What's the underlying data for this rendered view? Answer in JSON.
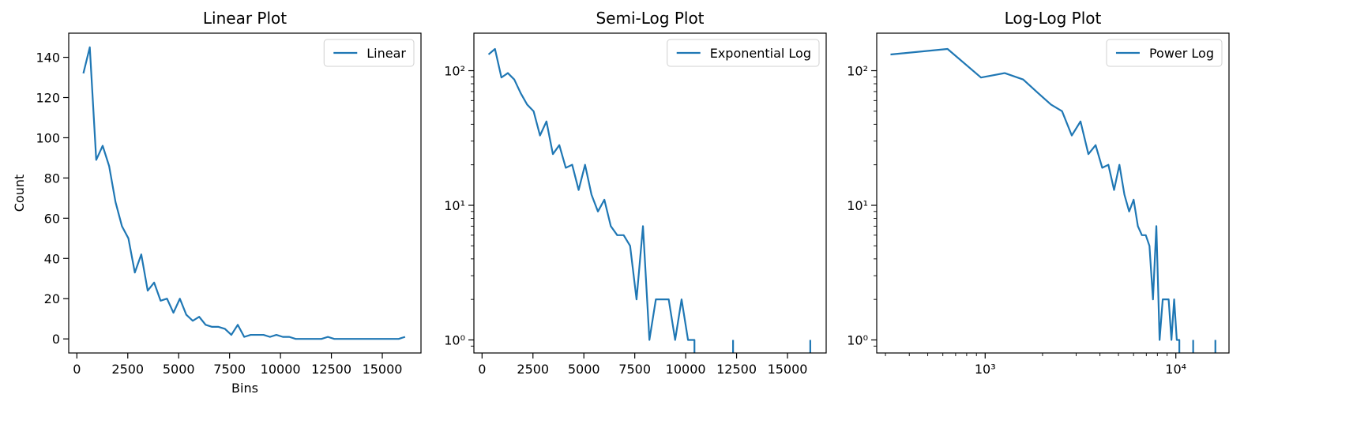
{
  "chart_data": [
    {
      "type": "line",
      "title": "Linear Plot",
      "xlabel": "Bins",
      "ylabel": "Count",
      "xscale": "linear",
      "yscale": "linear",
      "xlim": [
        -400,
        16900
      ],
      "ylim": [
        -7,
        152
      ],
      "xticks": [
        0,
        2500,
        5000,
        7500,
        10000,
        12500,
        15000
      ],
      "xtick_labels": [
        "0",
        "2500",
        "5000",
        "7500",
        "10000",
        "12500",
        "15000"
      ],
      "yticks": [
        0,
        20,
        40,
        60,
        80,
        100,
        120,
        140
      ],
      "ytick_labels": [
        "0",
        "20",
        "40",
        "60",
        "80",
        "100",
        "120",
        "140"
      ],
      "legend": {
        "position": "upper-right"
      },
      "series": [
        {
          "name": "Linear",
          "color": "#1f77b4",
          "x": [
            319,
            635,
            951,
            1267,
            1583,
            1899,
            2215,
            2531,
            2847,
            3163,
            3479,
            3795,
            4111,
            4427,
            4743,
            5059,
            5375,
            5691,
            6007,
            6323,
            6639,
            6955,
            7271,
            7587,
            7903,
            8219,
            8535,
            8851,
            9167,
            9483,
            9799,
            10115,
            10431,
            10747,
            11063,
            11379,
            11695,
            12011,
            12327,
            12643,
            12959,
            13275,
            13591,
            13907,
            14223,
            14539,
            14855,
            15171,
            15487,
            15803,
            16119
          ],
          "y": [
            132,
            145,
            89,
            96,
            86,
            68,
            56,
            50,
            33,
            42,
            24,
            28,
            19,
            20,
            13,
            20,
            12,
            9,
            11,
            7,
            6,
            6,
            5,
            2,
            7,
            1,
            2,
            2,
            2,
            1,
            2,
            1,
            1,
            0,
            0,
            0,
            0,
            0,
            1,
            0,
            0,
            0,
            0,
            0,
            0,
            0,
            0,
            0,
            0,
            0,
            1
          ]
        }
      ]
    },
    {
      "type": "line",
      "title": "Semi-Log Plot",
      "xlabel": "",
      "ylabel": "",
      "xscale": "linear",
      "yscale": "log",
      "xlim": [
        -400,
        16900
      ],
      "ylim": [
        0.8,
        190
      ],
      "xticks": [
        0,
        2500,
        5000,
        7500,
        10000,
        12500,
        15000
      ],
      "xtick_labels": [
        "0",
        "2500",
        "5000",
        "7500",
        "10000",
        "12500",
        "15000"
      ],
      "yticks": [
        1,
        10,
        100
      ],
      "ytick_labels": [
        "10⁰",
        "10¹",
        "10²"
      ],
      "legend": {
        "position": "upper-right"
      },
      "series": [
        {
          "name": "Exponential Log",
          "color": "#1f77b4",
          "x": [
            319,
            635,
            951,
            1267,
            1583,
            1899,
            2215,
            2531,
            2847,
            3163,
            3479,
            3795,
            4111,
            4427,
            4743,
            5059,
            5375,
            5691,
            6007,
            6323,
            6639,
            6955,
            7271,
            7587,
            7903,
            8219,
            8535,
            8851,
            9167,
            9483,
            9799,
            10115,
            10431,
            10747,
            11063,
            11379,
            11695,
            12011,
            12327,
            12643,
            12959,
            13275,
            13591,
            13907,
            14223,
            14539,
            14855,
            15171,
            15487,
            15803,
            16119
          ],
          "y": [
            132,
            145,
            89,
            96,
            86,
            68,
            56,
            50,
            33,
            42,
            24,
            28,
            19,
            20,
            13,
            20,
            12,
            9,
            11,
            7,
            6,
            6,
            5,
            2,
            7,
            1,
            2,
            2,
            2,
            1,
            2,
            1,
            1,
            0,
            0,
            0,
            0,
            0,
            1,
            0,
            0,
            0,
            0,
            0,
            0,
            0,
            0,
            0,
            0,
            0,
            1
          ]
        }
      ]
    },
    {
      "type": "line",
      "title": "Log-Log Plot",
      "xlabel": "",
      "ylabel": "",
      "xscale": "log",
      "yscale": "log",
      "xlim": [
        270,
        19000
      ],
      "ylim": [
        0.8,
        190
      ],
      "xticks": [
        1000,
        10000
      ],
      "xtick_labels": [
        "10³",
        "10⁴"
      ],
      "yticks": [
        1,
        10,
        100
      ],
      "ytick_labels": [
        "10⁰",
        "10¹",
        "10²"
      ],
      "legend": {
        "position": "upper-right"
      },
      "series": [
        {
          "name": "Power Log",
          "color": "#1f77b4",
          "x": [
            319,
            635,
            951,
            1267,
            1583,
            1899,
            2215,
            2531,
            2847,
            3163,
            3479,
            3795,
            4111,
            4427,
            4743,
            5059,
            5375,
            5691,
            6007,
            6323,
            6639,
            6955,
            7271,
            7587,
            7903,
            8219,
            8535,
            8851,
            9167,
            9483,
            9799,
            10115,
            10431,
            10747,
            11063,
            11379,
            11695,
            12011,
            12327,
            12643,
            12959,
            13275,
            13591,
            13907,
            14223,
            14539,
            14855,
            15171,
            15487,
            15803,
            16119
          ],
          "y": [
            132,
            145,
            89,
            96,
            86,
            68,
            56,
            50,
            33,
            42,
            24,
            28,
            19,
            20,
            13,
            20,
            12,
            9,
            11,
            7,
            6,
            6,
            5,
            2,
            7,
            1,
            2,
            2,
            2,
            1,
            2,
            1,
            1,
            0,
            0,
            0,
            0,
            0,
            1,
            0,
            0,
            0,
            0,
            0,
            0,
            0,
            0,
            0,
            0,
            0,
            1
          ]
        }
      ]
    }
  ]
}
